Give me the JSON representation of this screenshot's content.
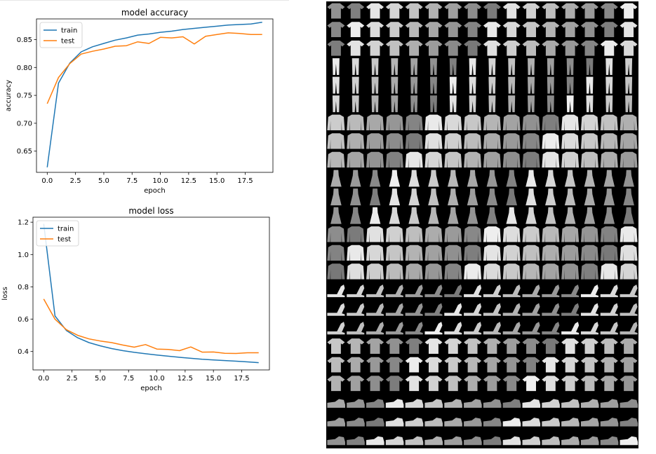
{
  "chart_data": [
    {
      "type": "line",
      "title": "model accuracy",
      "xlabel": "epoch",
      "ylabel": "accuracy",
      "xlim": [
        -0.95,
        19.95
      ],
      "ylim": [
        0.612,
        0.887
      ],
      "x_ticks": [
        "0.0",
        "2.5",
        "5.0",
        "7.5",
        "10.0",
        "12.5",
        "15.0",
        "17.5"
      ],
      "x_tick_values": [
        0,
        2.5,
        5,
        7.5,
        10,
        12.5,
        15,
        17.5
      ],
      "y_ticks": [
        "0.65",
        "0.70",
        "0.75",
        "0.80",
        "0.85"
      ],
      "y_tick_values": [
        0.65,
        0.7,
        0.75,
        0.8,
        0.85
      ],
      "x": [
        0,
        1,
        2,
        3,
        4,
        5,
        6,
        7,
        8,
        9,
        10,
        11,
        12,
        13,
        14,
        15,
        16,
        17,
        18,
        19
      ],
      "series": [
        {
          "name": "train",
          "color": "#1f77b4",
          "values": [
            0.621,
            0.772,
            0.808,
            0.828,
            0.837,
            0.843,
            0.849,
            0.853,
            0.858,
            0.86,
            0.863,
            0.865,
            0.868,
            0.87,
            0.872,
            0.874,
            0.876,
            0.877,
            0.878,
            0.881
          ]
        },
        {
          "name": "test",
          "color": "#ff7f0e",
          "values": [
            0.735,
            0.782,
            0.807,
            0.824,
            0.829,
            0.833,
            0.838,
            0.839,
            0.846,
            0.843,
            0.854,
            0.853,
            0.855,
            0.842,
            0.856,
            0.859,
            0.862,
            0.861,
            0.859,
            0.859
          ]
        }
      ],
      "legend": "upper left",
      "grid": false
    },
    {
      "type": "line",
      "title": "model loss",
      "xlabel": "epoch",
      "ylabel": "loss",
      "xlim": [
        -0.95,
        19.95
      ],
      "ylim": [
        0.286,
        1.231
      ],
      "x_ticks": [
        "0.0",
        "2.5",
        "5.0",
        "7.5",
        "10.0",
        "12.5",
        "15.0",
        "17.5"
      ],
      "x_tick_values": [
        0,
        2.5,
        5,
        7.5,
        10,
        12.5,
        15,
        17.5
      ],
      "y_ticks": [
        "0.4",
        "0.6",
        "0.8",
        "1.0",
        "1.2"
      ],
      "y_tick_values": [
        0.4,
        0.6,
        0.8,
        1.0,
        1.2
      ],
      "x": [
        0,
        1,
        2,
        3,
        4,
        5,
        6,
        7,
        8,
        9,
        10,
        11,
        12,
        13,
        14,
        15,
        16,
        17,
        18,
        19
      ],
      "series": [
        {
          "name": "train",
          "color": "#1f77b4",
          "values": [
            1.19,
            0.62,
            0.53,
            0.485,
            0.455,
            0.435,
            0.418,
            0.405,
            0.395,
            0.386,
            0.378,
            0.371,
            0.364,
            0.358,
            0.352,
            0.348,
            0.344,
            0.34,
            0.336,
            0.331
          ]
        },
        {
          "name": "test",
          "color": "#ff7f0e",
          "values": [
            0.725,
            0.6,
            0.535,
            0.5,
            0.478,
            0.465,
            0.455,
            0.44,
            0.427,
            0.443,
            0.415,
            0.413,
            0.405,
            0.428,
            0.396,
            0.397,
            0.389,
            0.388,
            0.392,
            0.392
          ]
        }
      ],
      "legend": "upper left",
      "grid": false
    }
  ],
  "gallery": {
    "rows": 24,
    "cols": 16,
    "row_classes": [
      "top",
      "top",
      "top",
      "trouser",
      "trouser",
      "trouser",
      "pullover",
      "pullover",
      "pullover",
      "dress",
      "dress",
      "dress",
      "coat",
      "coat",
      "coat",
      "sandal",
      "sandal",
      "sandal",
      "shirt",
      "shirt",
      "shirt",
      "sneaker",
      "sneaker",
      "sneaker"
    ]
  }
}
